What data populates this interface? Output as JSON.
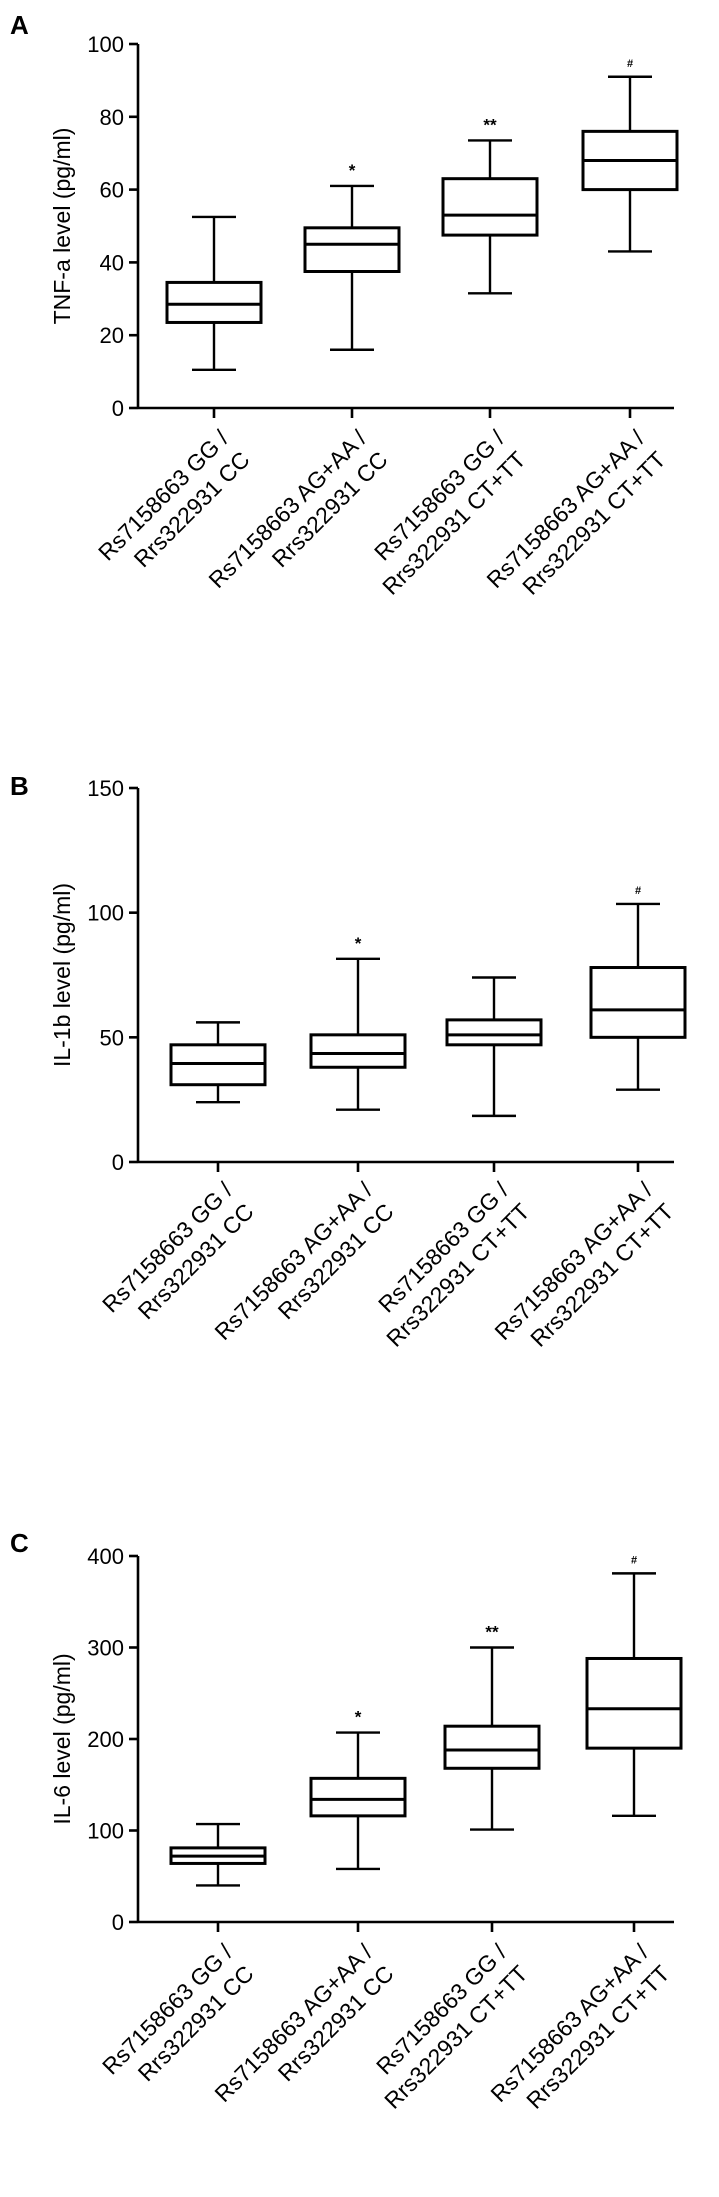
{
  "chart_data": [
    {
      "type": "box",
      "panel": "A",
      "ylabel": "TNF-a level (pg/ml)",
      "ylim": [
        0,
        100
      ],
      "yticks": [
        0,
        20,
        40,
        60,
        80,
        100
      ],
      "categories": [
        [
          "Rs7158663 GG /",
          "Rrs322931 CC"
        ],
        [
          "Rs7158663 AG+AA /",
          "Rrs322931 CC"
        ],
        [
          "Rs7158663 GG /",
          "Rrs322931 CT+TT"
        ],
        [
          "Rs7158663 AG+AA /",
          "Rrs322931 CT+TT"
        ]
      ],
      "boxes": [
        {
          "min": 10.5,
          "q1": 23.5,
          "median": 28.5,
          "q3": 34.5,
          "max": 52.5,
          "sig": ""
        },
        {
          "min": 16,
          "q1": 37.5,
          "median": 45,
          "q3": 49.5,
          "max": 61,
          "sig": "*"
        },
        {
          "min": 31.5,
          "q1": 47.5,
          "median": 53,
          "q3": 63,
          "max": 73.5,
          "sig": "**"
        },
        {
          "min": 43,
          "q1": 60,
          "median": 68,
          "q3": 76,
          "max": 91,
          "sig": "#"
        }
      ]
    },
    {
      "type": "box",
      "panel": "B",
      "ylabel": "IL-1b level (pg/ml)",
      "ylim": [
        0,
        150
      ],
      "yticks": [
        0,
        50,
        100,
        150
      ],
      "categories": [
        [
          "Rs7158663 GG /",
          "Rrs322931 CC"
        ],
        [
          "Rs7158663 AG+AA /",
          "Rrs322931 CC"
        ],
        [
          "Rs7158663 GG /",
          "Rrs322931 CT+TT"
        ],
        [
          "Rs7158663 AG+AA /",
          "Rrs322931 CT+TT"
        ]
      ],
      "boxes": [
        {
          "min": 24,
          "q1": 31,
          "median": 39.5,
          "q3": 47,
          "max": 56,
          "sig": ""
        },
        {
          "min": 21,
          "q1": 38,
          "median": 43.5,
          "q3": 51,
          "max": 81.5,
          "sig": "*"
        },
        {
          "min": 18.5,
          "q1": 47,
          "median": 51,
          "q3": 57,
          "max": 74,
          "sig": ""
        },
        {
          "min": 29,
          "q1": 50,
          "median": 61,
          "q3": 78,
          "max": 103.5,
          "sig": "#"
        }
      ]
    },
    {
      "type": "box",
      "panel": "C",
      "ylabel": "IL-6 level (pg/ml)",
      "ylim": [
        0,
        400
      ],
      "yticks": [
        0,
        100,
        200,
        300,
        400
      ],
      "categories": [
        [
          "Rs7158663 GG /",
          "Rrs322931 CC"
        ],
        [
          "Rs7158663 AG+AA /",
          "Rrs322931 CC"
        ],
        [
          "Rs7158663 GG /",
          "Rrs322931 CT+TT"
        ],
        [
          "Rs7158663 AG+AA /",
          "Rrs322931 CT+TT"
        ]
      ],
      "boxes": [
        {
          "min": 40,
          "q1": 64,
          "median": 72,
          "q3": 81,
          "max": 107,
          "sig": ""
        },
        {
          "min": 58,
          "q1": 116,
          "median": 134,
          "q3": 157,
          "max": 207,
          "sig": "*"
        },
        {
          "min": 101,
          "q1": 168,
          "median": 188,
          "q3": 214,
          "max": 300,
          "sig": "**"
        },
        {
          "min": 116,
          "q1": 190,
          "median": 233,
          "q3": 288,
          "max": 381,
          "sig": "#"
        }
      ]
    }
  ]
}
